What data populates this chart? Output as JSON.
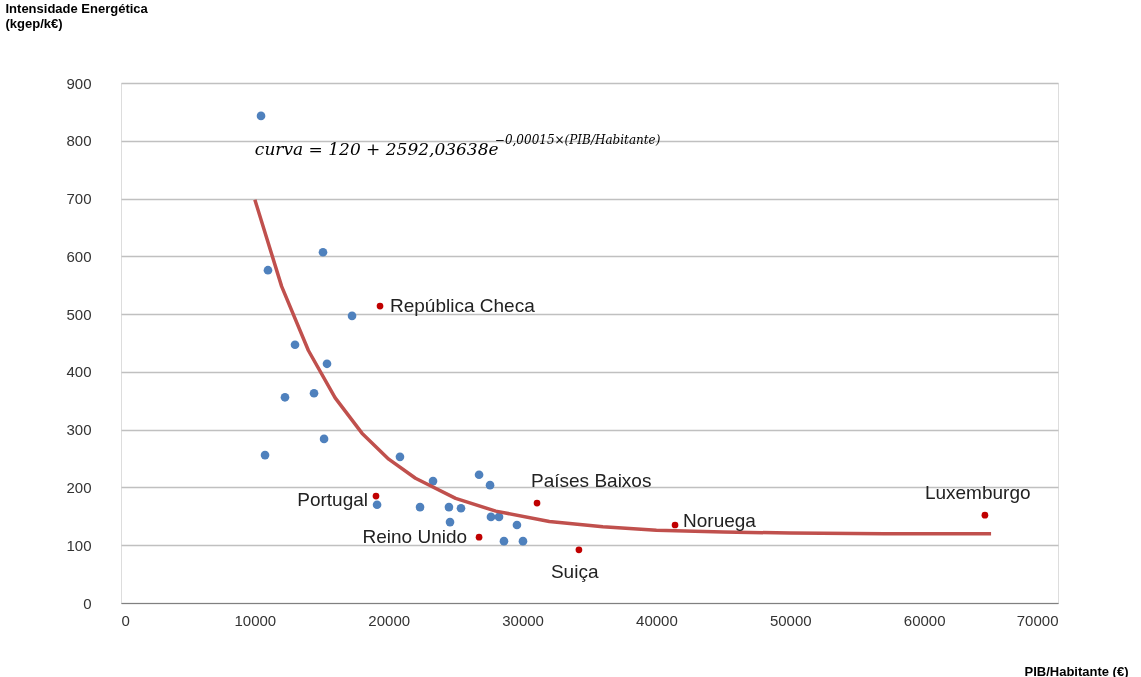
{
  "chart_data": {
    "type": "scatter",
    "xlabel": "PIB/Habitante (€)",
    "ylabel": "Intensidade Energética\n(kgep/k€)",
    "series": [
      {
        "color": "#4f81bd",
        "x": [
          10460,
          10980,
          15090,
          17260,
          13000,
          15390,
          12250,
          14420,
          15170,
          10760,
          20840,
          23310,
          26750,
          27570,
          19130,
          22340,
          24500,
          25400,
          24580,
          27640,
          28240,
          29580,
          28610,
          30030
        ],
        "values": [
          843,
          576,
          607,
          497,
          447,
          414,
          356,
          363,
          284,
          256,
          253,
          211,
          222,
          204,
          170,
          166,
          166,
          164,
          140,
          149,
          149,
          135,
          107,
          107
        ]
      },
      {
        "color": "#c00000",
        "x": [
          19350,
          19050,
          26750,
          31080,
          34210,
          41390,
          64540
        ],
        "values": [
          514,
          185,
          114,
          173,
          92,
          135,
          152
        ]
      },
      {
        "type": "line",
        "color": "#c0504d",
        "marker": "none",
        "line_style": "solid",
        "x": [
          10000,
          12000,
          14000,
          16000,
          18000,
          20000,
          22000,
          25000,
          28000,
          32000,
          36000,
          40000,
          45000,
          50000,
          57000,
          65000
        ],
        "values": [
          698,
          548,
          437,
          355,
          294,
          249,
          216,
          181,
          159,
          141,
          132,
          126,
          123,
          121,
          120,
          120
        ]
      }
    ],
    "annotations": [
      {
        "text": "curva = 120 + 2592,03638e$^{−0,00015×(PIB/Habitante)}$",
        "x": 10000,
        "y": 698
      },
      {
        "text": "República Checa",
        "x": 19350,
        "y": 514
      },
      {
        "text": "Portugal",
        "x": 19050,
        "y": 185
      },
      {
        "text": "Reino Unido",
        "x": 26750,
        "y": 114
      },
      {
        "text": "Países Baixos",
        "x": 31080,
        "y": 173
      },
      {
        "text": "Suiça",
        "x": 34210,
        "y": 92
      },
      {
        "text": "Noruega",
        "x": 41390,
        "y": 135
      },
      {
        "text": "Luxemburgo",
        "x": 64540,
        "y": 152
      }
    ],
    "xlim": [
      0,
      70000
    ],
    "xticks": [
      0,
      10000,
      20000,
      30000,
      40000,
      50000,
      60000,
      70000
    ],
    "ylim": [
      0,
      900
    ],
    "yticks": [
      0,
      100,
      200,
      300,
      400,
      500,
      600,
      700,
      800,
      900
    ],
    "grid": "y",
    "marker": "circle"
  }
}
